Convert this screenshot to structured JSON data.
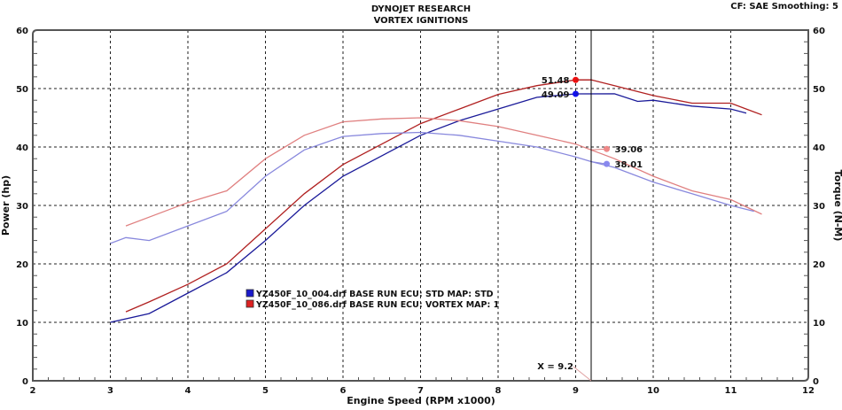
{
  "header": {
    "title": "DYNOJET RESEARCH",
    "subtitle": "VORTEX IGNITIONS",
    "info": "CF: SAE  Smoothing: 5"
  },
  "chart_data": {
    "type": "line",
    "title": "DYNOJET RESEARCH",
    "subtitle": "VORTEX IGNITIONS",
    "xlabel": "Engine Speed (RPM x1000)",
    "ylabel": "Power (hp)",
    "y2label": "Torque (N-M)",
    "xlim": [
      2,
      12
    ],
    "ylim": [
      0,
      60
    ],
    "y2lim": [
      0,
      60
    ],
    "x_ticks": [
      "2",
      "3",
      "4",
      "5",
      "6",
      "7",
      "8",
      "9",
      "10",
      "11",
      "12"
    ],
    "y_ticks": [
      "0",
      "10",
      "20",
      "30",
      "40",
      "50",
      "60"
    ],
    "grid": true,
    "legend_placement": "center-left",
    "legend": [
      {
        "label": "YZ450F_10_004.drf BASE RUN  ECU: STD MAP: STD",
        "color": "#1a1acc"
      },
      {
        "label": "YZ450F_10_086.drf BASE RUN  ECU: VORTEX  MAP: 1",
        "color": "#cc2222"
      }
    ],
    "cursor": {
      "x": 9.2,
      "label": "X = 9.2"
    },
    "series": [
      {
        "run": "red",
        "kind": "power",
        "color": "#b02020",
        "axis": "left",
        "x": [
          3.2,
          3.5,
          4,
          4.5,
          5,
          5.5,
          6,
          6.5,
          7,
          7.5,
          8,
          8.5,
          9,
          9.2,
          9.5,
          10,
          10.5,
          11,
          11.2,
          11.4
        ],
        "y": [
          11.8,
          13.5,
          16.5,
          20,
          26,
          32,
          37,
          40.5,
          44,
          46.5,
          49,
          50.5,
          51.48,
          51.5,
          50.5,
          48.8,
          47.5,
          47.5,
          46.5,
          45.5
        ],
        "marker": {
          "x": 9.0,
          "value": "51.48",
          "color": "#ee1111"
        }
      },
      {
        "run": "blue",
        "kind": "power",
        "color": "#1a1a99",
        "axis": "left",
        "x": [
          3,
          3.5,
          4,
          4.5,
          5,
          5.5,
          6,
          6.5,
          7,
          7.5,
          8,
          8.5,
          9,
          9.5,
          9.8,
          10,
          10.5,
          11,
          11.2
        ],
        "y": [
          10,
          11.5,
          15,
          18.5,
          24,
          30,
          35,
          38.5,
          42,
          44.5,
          46.5,
          48.5,
          49.09,
          49.1,
          47.8,
          48,
          47,
          46.5,
          45.8
        ],
        "marker": {
          "x": 9.0,
          "value": "49.09",
          "color": "#1111ee"
        }
      },
      {
        "run": "red",
        "kind": "torque",
        "color": "#e08080",
        "axis": "right",
        "x": [
          3.2,
          3.5,
          4,
          4.5,
          5,
          5.5,
          6,
          6.5,
          7,
          7.5,
          8,
          8.5,
          9,
          9.2,
          9.5,
          10,
          10.5,
          11,
          11.4
        ],
        "y": [
          26.5,
          28,
          30.5,
          32.5,
          38,
          42,
          44.3,
          44.8,
          45,
          44.5,
          43.5,
          42,
          40.5,
          39.5,
          38,
          35,
          32.5,
          31,
          28.5
        ],
        "marker": {
          "x": 9.4,
          "value": "39.06",
          "color": "#ee8888"
        }
      },
      {
        "run": "blue",
        "kind": "torque",
        "color": "#8888dd",
        "axis": "right",
        "x": [
          3,
          3.2,
          3.5,
          4,
          4.5,
          5,
          5.5,
          6,
          6.5,
          7,
          7.5,
          8,
          8.5,
          9,
          9.2,
          9.5,
          10,
          10.5,
          11,
          11.3
        ],
        "y": [
          23.5,
          24.5,
          24,
          26.5,
          29,
          35,
          39.5,
          41.8,
          42.3,
          42.5,
          42,
          41,
          40,
          38.3,
          37.5,
          36.5,
          34,
          32,
          30,
          29
        ],
        "marker": {
          "x": 9.4,
          "value": "38.01",
          "color": "#8888ee"
        }
      }
    ]
  }
}
